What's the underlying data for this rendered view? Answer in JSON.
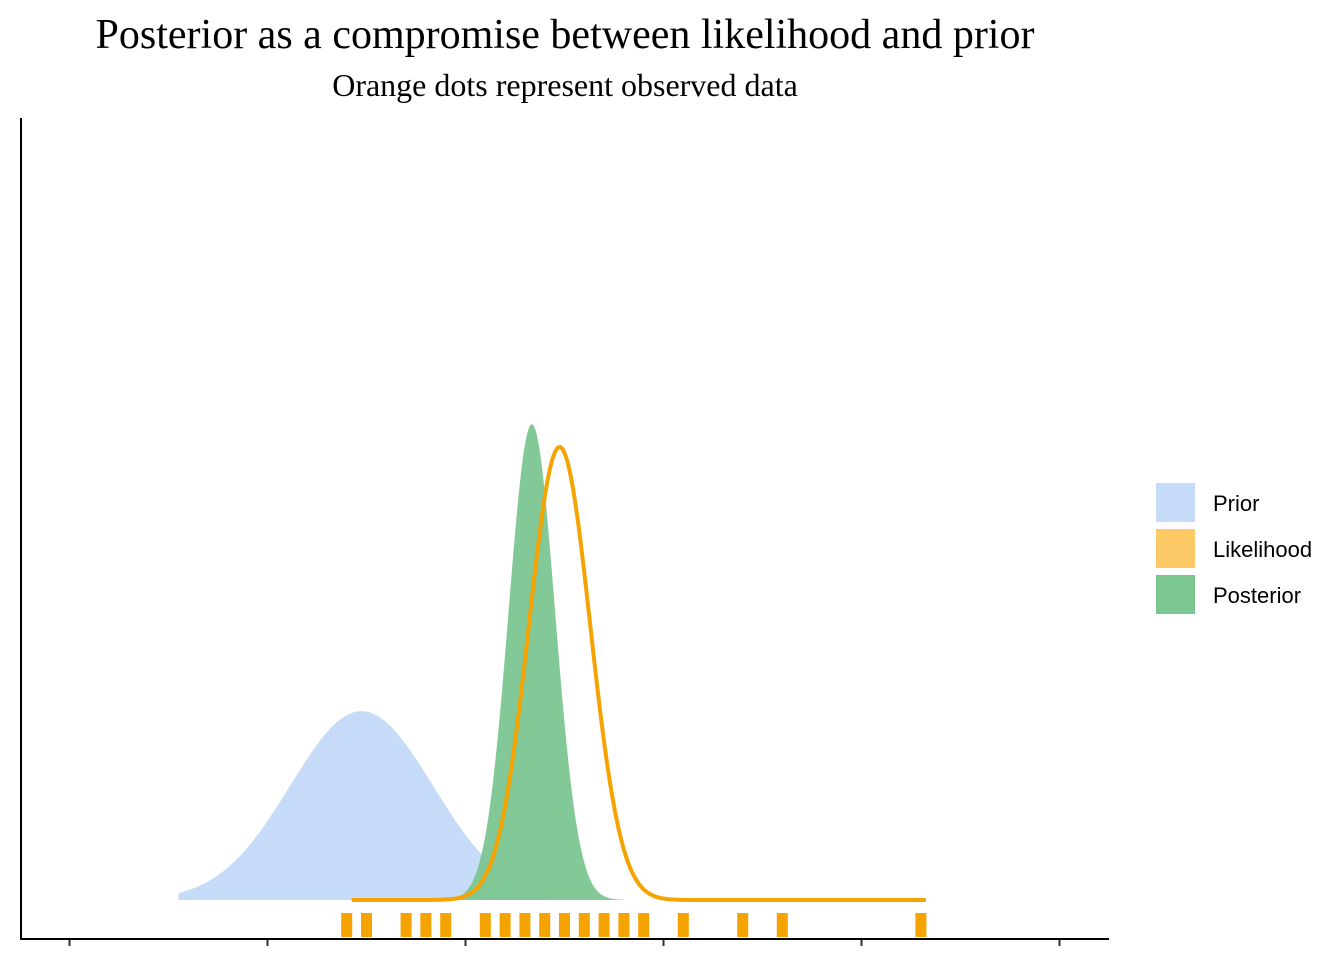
{
  "chart_data": {
    "type": "area",
    "title": "Posterior as a compromise between likelihood and prior",
    "subtitle": "Orange dots represent observed data",
    "xlabel": "",
    "ylabel": "",
    "xlim": [
      -5,
      105
    ],
    "ylim": [
      0,
      1.25
    ],
    "x_ticks": [
      0,
      20,
      40,
      60,
      80,
      100
    ],
    "x_tick_labels_visible": false,
    "y_ticks_visible": false,
    "grid": false,
    "legend_position": "right",
    "legend": [
      "Prior",
      "Likelihood",
      "Posterior"
    ],
    "series": [
      {
        "name": "Prior",
        "style": "filled",
        "color": "#c6dbf7",
        "shape": {
          "family": "normal",
          "mean": 29.5,
          "sd": 7.2,
          "peak": 0.5,
          "x_range": [
            11,
            48.5
          ]
        }
      },
      {
        "name": "Likelihood",
        "style": "line",
        "color": "#f5a300",
        "shape": {
          "family": "normal",
          "mean": 49.5,
          "sd": 3.1,
          "peak": 1.2,
          "x_range": [
            28.5,
            86.5
          ]
        }
      },
      {
        "name": "Posterior",
        "style": "filled",
        "color": "#7cc692",
        "shape": {
          "family": "normal",
          "mean": 46.7,
          "sd": 2.35,
          "peak": 1.26,
          "x_range": [
            38.5,
            56
          ]
        }
      }
    ],
    "observed_data": {
      "color": "#f5a300",
      "x": [
        28,
        30,
        34,
        36,
        38,
        42,
        44,
        46,
        48,
        50,
        52,
        54,
        56,
        58,
        62,
        68,
        72,
        86
      ]
    }
  }
}
